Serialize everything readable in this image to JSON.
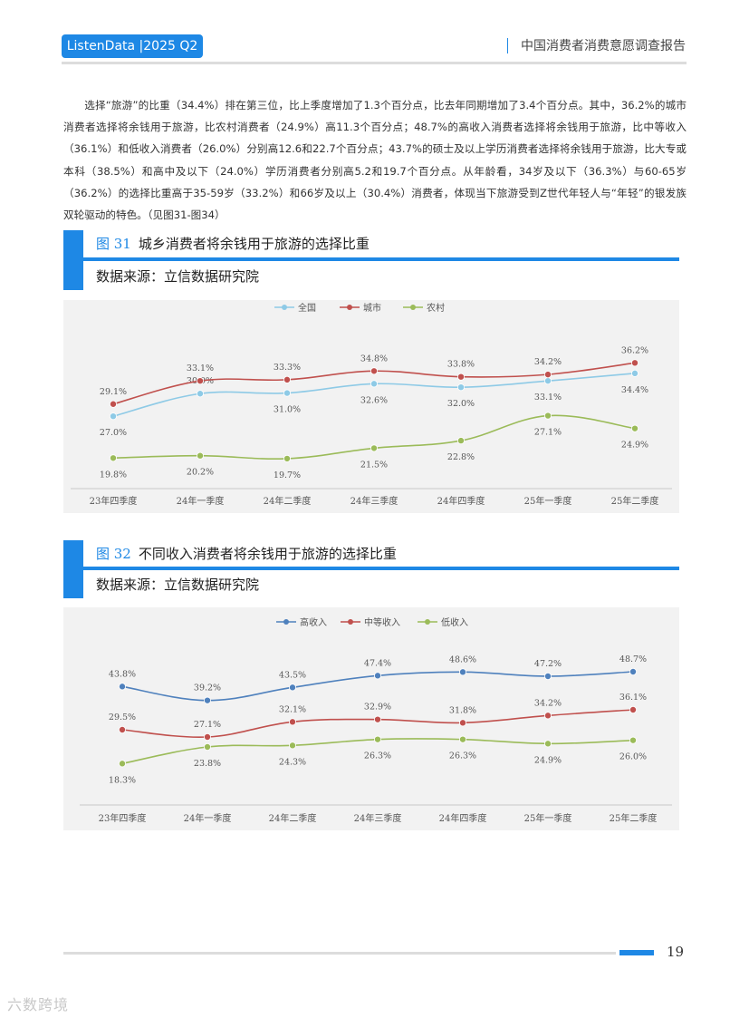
{
  "header": {
    "badge": "ListenData |2025 Q2",
    "title": "中国消费者消费意愿调查报告"
  },
  "body_text": "选择“旅游”的比重（34.4%）排在第三位，比上季度增加了1.3个百分点，比去年同期增加了3.4个百分点。其中，36.2%的城市消费者选择将余钱用于旅游，比农村消费者（24.9%）高11.3个百分点；48.7%的高收入消费者选择将余钱用于旅游，比中等收入（36.1%）和低收入消费者（26.0%）分别高12.6和22.7个百分点；43.7%的硕士及以上学历消费者选择将余钱用于旅游，比大专或本科（38.5%）和高中及以下（24.0%）学历消费者分别高5.2和19.7个百分点。从年龄看，34岁及以下（36.3%）与60-65岁（36.2%）的选择比重高于35-59岁（33.2%）和66岁及以上（30.4%）消费者，体现当下旅游受到Z世代年轻人与“年轻”的银发族双轮驱动的特色。（见图31-图34）",
  "figures": [
    {
      "number": "图 31",
      "title": "城乡消费者将余钱用于旅游的选择比重",
      "source": "数据来源：立信数据研究院"
    },
    {
      "number": "图 32",
      "title": "不同收入消费者将余钱用于旅游的选择比重",
      "source": "数据来源：立信数据研究院"
    }
  ],
  "chart_data": [
    {
      "type": "line",
      "title": "",
      "categories": [
        "23年四季度",
        "24年一季度",
        "24年二季度",
        "24年三季度",
        "24年四季度",
        "25年一季度",
        "25年二季度"
      ],
      "series": [
        {
          "name": "全国",
          "color": "#8ecae6",
          "values": [
            27.0,
            30.9,
            31.0,
            32.6,
            32.0,
            33.1,
            34.4
          ],
          "labels": [
            "27.0%",
            "30.9%",
            "31.0%",
            "32.6%",
            "32.0%",
            "33.1%",
            "34.4%"
          ]
        },
        {
          "name": "城市",
          "color": "#c0504d",
          "values": [
            29.1,
            33.1,
            33.3,
            34.8,
            33.8,
            34.2,
            36.2
          ],
          "labels": [
            "29.1%",
            "33.1%",
            "33.3%",
            "34.8%",
            "33.8%",
            "34.2%",
            "36.2%"
          ]
        },
        {
          "name": "农村",
          "color": "#9bbb59",
          "values": [
            19.8,
            20.2,
            19.7,
            21.5,
            22.8,
            27.1,
            24.9
          ],
          "labels": [
            "19.8%",
            "20.2%",
            "19.7%",
            "21.5%",
            "22.8%",
            "27.1%",
            "24.9%"
          ]
        }
      ],
      "ylim": [
        15,
        40
      ],
      "grid": false,
      "legend": "top-center"
    },
    {
      "type": "line",
      "title": "",
      "categories": [
        "23年四季度",
        "24年一季度",
        "24年二季度",
        "24年三季度",
        "24年四季度",
        "25年一季度",
        "25年二季度"
      ],
      "series": [
        {
          "name": "高收入",
          "color": "#4f81bd",
          "values": [
            43.8,
            39.2,
            43.5,
            47.4,
            48.6,
            47.2,
            48.7
          ],
          "labels": [
            "43.8%",
            "39.2%",
            "43.5%",
            "47.4%",
            "48.6%",
            "47.2%",
            "48.7%"
          ]
        },
        {
          "name": "中等收入",
          "color": "#c0504d",
          "values": [
            29.5,
            27.1,
            32.1,
            32.9,
            31.8,
            34.2,
            36.1
          ],
          "labels": [
            "29.5%",
            "27.1%",
            "32.1%",
            "32.9%",
            "31.8%",
            "34.2%",
            "36.1%"
          ]
        },
        {
          "name": "低收入",
          "color": "#9bbb59",
          "values": [
            18.3,
            23.8,
            24.3,
            26.3,
            26.3,
            24.9,
            26.0
          ],
          "labels": [
            "18.3%",
            "23.8%",
            "24.3%",
            "26.3%",
            "26.3%",
            "24.9%",
            "26.0%"
          ]
        }
      ],
      "ylim": [
        10,
        55
      ],
      "grid": false,
      "legend": "top-center"
    }
  ],
  "footer": {
    "page_number": "19",
    "watermark": "六数跨境"
  }
}
